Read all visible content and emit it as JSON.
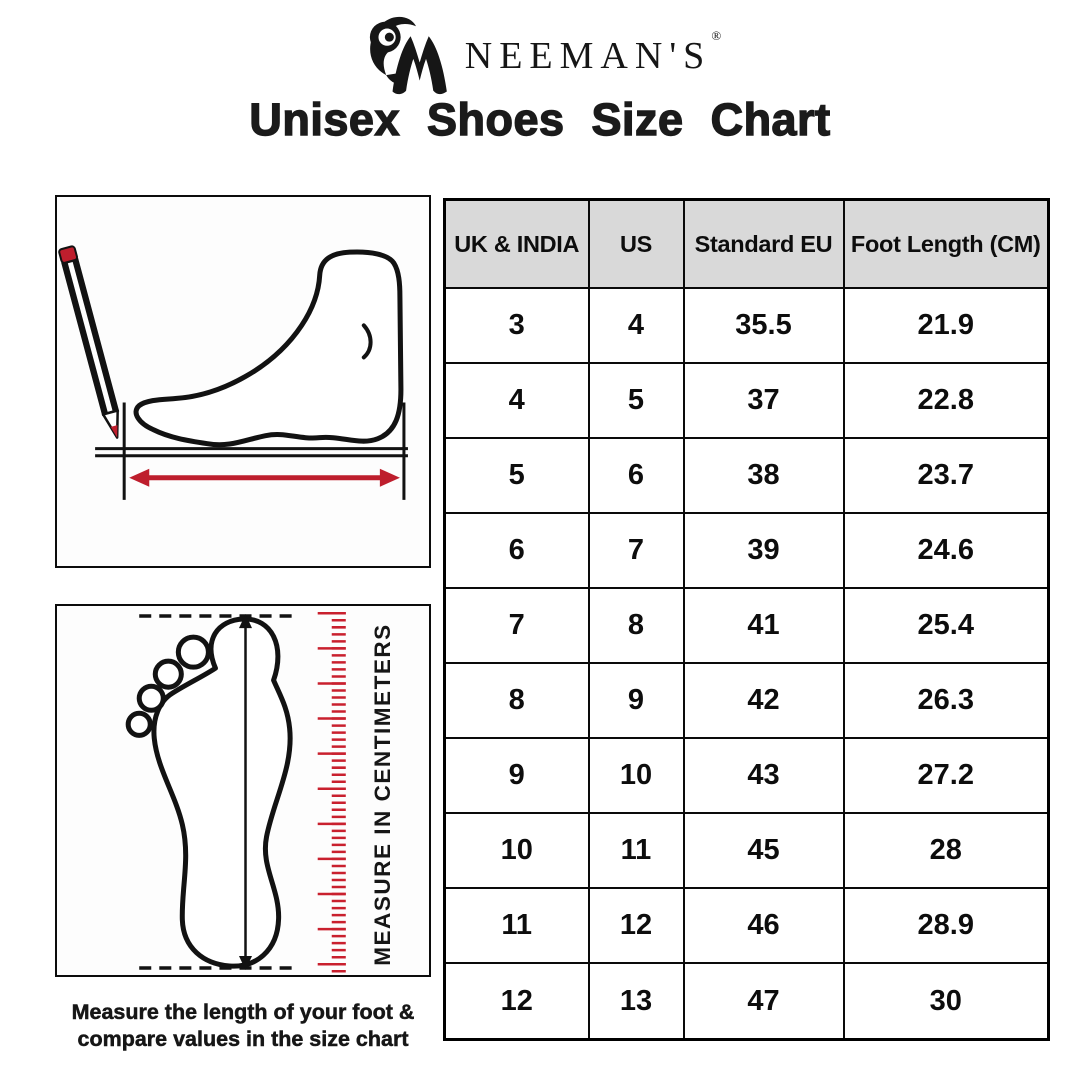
{
  "colors": {
    "accent_red": "#BE1E2D",
    "ruler_red": "#C9202E",
    "header_bg": "#D9D9D9",
    "ink": "#111111"
  },
  "brand": {
    "name": "NEEMAN'S",
    "registered_mark": "®"
  },
  "title": "Unisex Shoes Size Chart",
  "measure_box": {
    "ruler_label": "MEASURE  IN  CENTIMETERS"
  },
  "caption": {
    "line1": "Measure the length of your foot &",
    "line2": "compare values in the size chart"
  },
  "size_table": {
    "headers": [
      "UK & INDIA",
      "US",
      "Standard EU",
      "Foot Length (CM)"
    ],
    "rows": [
      [
        "3",
        "4",
        "35.5",
        "21.9"
      ],
      [
        "4",
        "5",
        "37",
        "22.8"
      ],
      [
        "5",
        "6",
        "38",
        "23.7"
      ],
      [
        "6",
        "7",
        "39",
        "24.6"
      ],
      [
        "7",
        "8",
        "41",
        "25.4"
      ],
      [
        "8",
        "9",
        "42",
        "26.3"
      ],
      [
        "9",
        "10",
        "43",
        "27.2"
      ],
      [
        "10",
        "11",
        "45",
        "28"
      ],
      [
        "11",
        "12",
        "46",
        "28.9"
      ],
      [
        "12",
        "13",
        "47",
        "30"
      ]
    ]
  }
}
